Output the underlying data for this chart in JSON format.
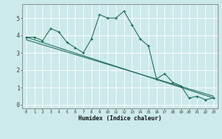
{
  "title": "",
  "xlabel": "Humidex (Indice chaleur)",
  "bg_color": "#cceaea",
  "grid_color": "#ffffff",
  "line_color": "#1a6b5a",
  "xlim": [
    -0.5,
    23.5
  ],
  "ylim": [
    -0.2,
    5.8
  ],
  "xticks": [
    0,
    1,
    2,
    3,
    4,
    5,
    6,
    7,
    8,
    9,
    10,
    11,
    12,
    13,
    14,
    15,
    16,
    17,
    18,
    19,
    20,
    21,
    22,
    23
  ],
  "yticks": [
    0,
    1,
    2,
    3,
    4,
    5
  ],
  "series1_x": [
    0,
    1,
    2,
    3,
    4,
    5,
    6,
    7,
    8,
    9,
    10,
    11,
    12,
    13,
    14,
    15,
    16,
    17,
    18,
    19,
    20,
    21,
    22,
    23
  ],
  "series1_y": [
    3.9,
    3.9,
    3.7,
    4.4,
    4.2,
    3.6,
    3.3,
    3.0,
    3.8,
    5.2,
    5.0,
    5.0,
    5.4,
    4.6,
    3.8,
    3.4,
    1.5,
    1.8,
    1.3,
    1.1,
    0.4,
    0.5,
    0.3,
    0.4
  ],
  "trendline1_x": [
    0,
    23
  ],
  "trendline1_y": [
    3.9,
    0.4
  ],
  "trendline2_x": [
    0,
    23
  ],
  "trendline2_y": [
    3.75,
    0.5
  ]
}
